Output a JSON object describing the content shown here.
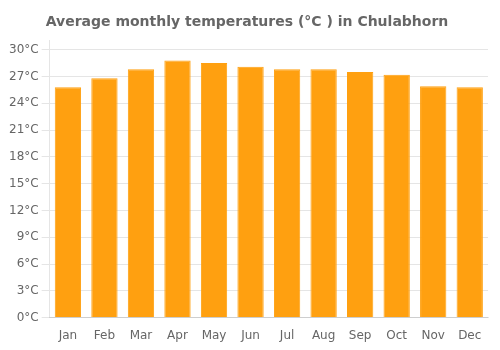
{
  "chart_data": {
    "type": "bar",
    "title": "Average monthly temperatures (°C ) in Chulabhorn",
    "categories": [
      "Jan",
      "Feb",
      "Mar",
      "Apr",
      "May",
      "Jun",
      "Jul",
      "Aug",
      "Sep",
      "Oct",
      "Nov",
      "Dec"
    ],
    "values": [
      25.8,
      26.8,
      27.8,
      28.8,
      28.5,
      28.1,
      27.8,
      27.8,
      27.5,
      27.2,
      25.9,
      25.8
    ],
    "color": "#FFA010",
    "ylim": [
      0,
      31
    ],
    "yticks": [
      {
        "value": 0,
        "label": "0°C"
      },
      {
        "value": 3,
        "label": "3°C"
      },
      {
        "value": 6,
        "label": "6°C"
      },
      {
        "value": 9,
        "label": "9°C"
      },
      {
        "value": 12,
        "label": "12°C"
      },
      {
        "value": 15,
        "label": "15°C"
      },
      {
        "value": 18,
        "label": "18°C"
      },
      {
        "value": 21,
        "label": "21°C"
      },
      {
        "value": 24,
        "label": "24°C"
      },
      {
        "value": 27,
        "label": "27°C"
      },
      {
        "value": 30,
        "label": "30°C"
      }
    ],
    "grid": true
  }
}
